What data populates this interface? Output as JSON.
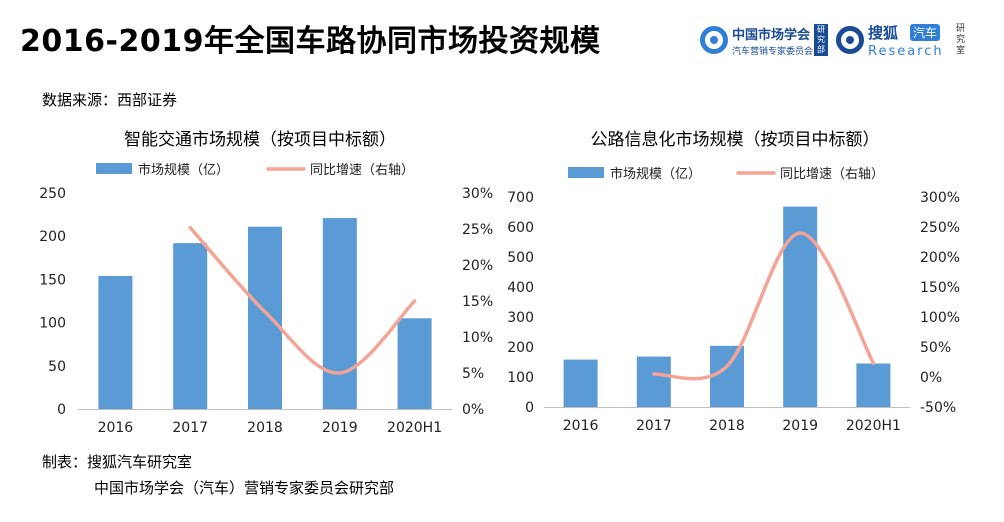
{
  "page": {
    "title": "2016-2019年全国车路协同市场投资规模",
    "source": "数据来源：西部证券",
    "maker_line1": "制表：搜狐汽车研究室",
    "maker_line2": "中国市场学会（汽车）营销专家委员会研究部"
  },
  "logos": {
    "org1_name": "中国市场学会",
    "org1_sub": "汽车营销专家委员会",
    "org1_badge": "研究部",
    "org2_name": "搜狐",
    "org2_tag": "汽车",
    "org2_sub": "Research",
    "org2_side": "研究室"
  },
  "colors": {
    "bar": "#5b9bd5",
    "line": "#f4a497",
    "axis": "#bfbfbf"
  },
  "chart_data": [
    {
      "type": "bar",
      "title": "智能交通市场规模（按项目中标额）",
      "categories": [
        "2016",
        "2017",
        "2018",
        "2019",
        "2020H1"
      ],
      "series": [
        {
          "name": "市场规模（亿）",
          "axis": "left",
          "type": "bar",
          "values": [
            154,
            192,
            211,
            221,
            105
          ]
        },
        {
          "name": "同比增速（右轴）",
          "axis": "right",
          "type": "line",
          "values": [
            null,
            25.2,
            13.5,
            5.0,
            15.0
          ]
        }
      ],
      "ylim_left": [
        0,
        250
      ],
      "yticks_left": [
        "0",
        "50",
        "100",
        "150",
        "200",
        "250"
      ],
      "ylim_right": [
        0,
        30
      ],
      "yticks_right": [
        "0%",
        "5%",
        "10%",
        "15%",
        "20%",
        "25%",
        "30%"
      ],
      "grid": false,
      "legend": "top"
    },
    {
      "type": "bar",
      "title": "公路信息化市场规模（按项目中标额）",
      "categories": [
        "2016",
        "2017",
        "2018",
        "2019",
        "2020H1"
      ],
      "series": [
        {
          "name": "市场规模（亿）",
          "axis": "left",
          "type": "bar",
          "values": [
            158,
            168,
            204,
            668,
            145
          ]
        },
        {
          "name": "同比增速（右轴）",
          "axis": "right",
          "type": "line",
          "values": [
            null,
            5,
            18,
            240,
            23
          ]
        }
      ],
      "ylim_left": [
        0,
        700
      ],
      "yticks_left": [
        "0",
        "100",
        "200",
        "300",
        "400",
        "500",
        "600",
        "700"
      ],
      "ylim_right": [
        -50,
        300
      ],
      "yticks_right": [
        "-50%",
        "0%",
        "50%",
        "100%",
        "150%",
        "200%",
        "250%",
        "300%"
      ],
      "grid": false,
      "legend": "top"
    }
  ]
}
